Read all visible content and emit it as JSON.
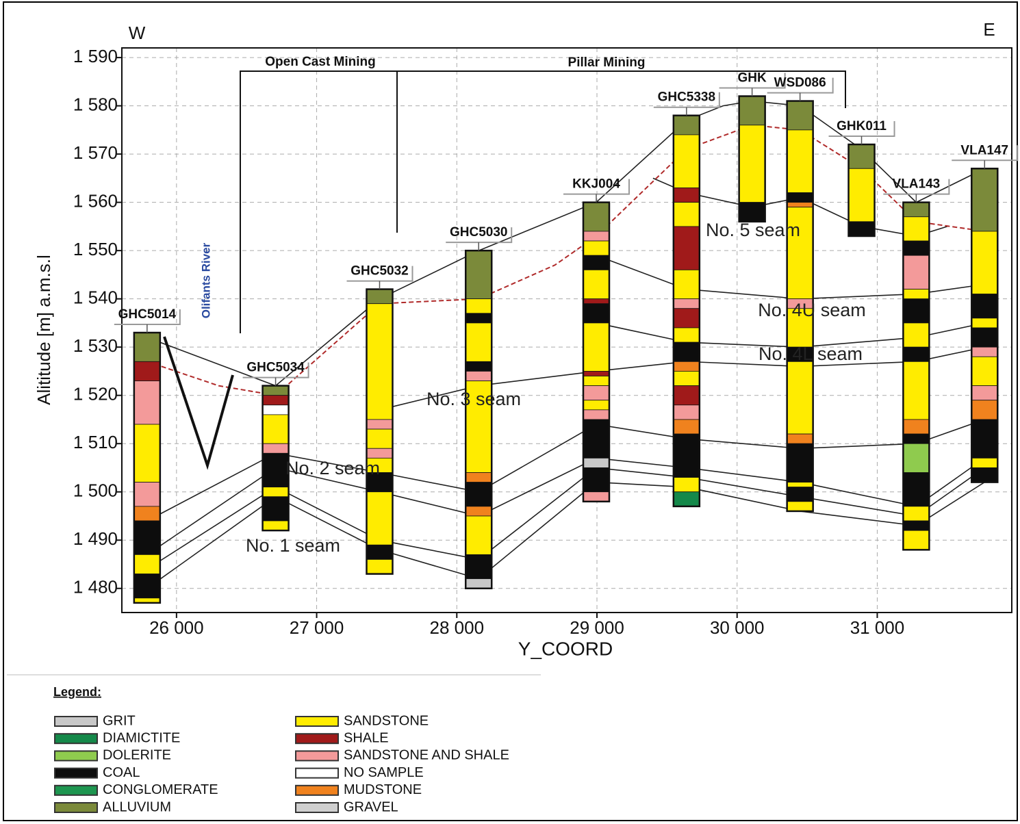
{
  "header": {
    "west": "W",
    "east": "E",
    "open_cast": "Open Cast Mining",
    "pillar": "Pillar Mining",
    "river": "Olifants River"
  },
  "chart_data": {
    "type": "section",
    "xlabel": "Y_COORD",
    "ylabel": "Alititude  [m] a.m.s.l",
    "xlim": [
      25610,
      31960
    ],
    "ylim": [
      1475,
      1592
    ],
    "grid": true,
    "xticks": [
      {
        "value": 26000,
        "label": "26 000"
      },
      {
        "value": 27000,
        "label": "27 000"
      },
      {
        "value": 28000,
        "label": "28 000"
      },
      {
        "value": 29000,
        "label": "29 000"
      },
      {
        "value": 30000,
        "label": "30 000"
      },
      {
        "value": 31000,
        "label": "31 000"
      }
    ],
    "yticks": [
      {
        "value": 1480,
        "label": "1 480"
      },
      {
        "value": 1490,
        "label": "1 490"
      },
      {
        "value": 1500,
        "label": "1 500"
      },
      {
        "value": 1510,
        "label": "1 510"
      },
      {
        "value": 1520,
        "label": "1 520"
      },
      {
        "value": 1530,
        "label": "1 530"
      },
      {
        "value": 1540,
        "label": "1 540"
      },
      {
        "value": 1550,
        "label": "1 550"
      },
      {
        "value": 1560,
        "label": "1 560"
      },
      {
        "value": 1570,
        "label": "1 570"
      },
      {
        "value": 1580,
        "label": "1 580"
      },
      {
        "value": 1590,
        "label": "1 590"
      }
    ],
    "boreholes": [
      {
        "name": "GHC5014",
        "x": 25790,
        "layers": [
          [
            "ALLUVIUM",
            1533,
            1527
          ],
          [
            "SHALE",
            1527,
            1523
          ],
          [
            "SANDSTONE AND SHALE",
            1523,
            1514
          ],
          [
            "SANDSTONE",
            1514,
            1502
          ],
          [
            "SANDSTONE AND SHALE",
            1502,
            1497
          ],
          [
            "MUDSTONE",
            1497,
            1494
          ],
          [
            "COAL",
            1494,
            1487
          ],
          [
            "SANDSTONE",
            1487,
            1483
          ],
          [
            "COAL",
            1483,
            1478
          ],
          [
            "SANDSTONE",
            1478,
            1477
          ]
        ]
      },
      {
        "name": "GHC5034",
        "x": 26707,
        "layers": [
          [
            "ALLUVIUM",
            1522,
            1520
          ],
          [
            "SHALE",
            1520,
            1518
          ],
          [
            "NO SAMPLE",
            1518,
            1516
          ],
          [
            "SANDSTONE",
            1516,
            1510
          ],
          [
            "SANDSTONE AND SHALE",
            1510,
            1508
          ],
          [
            "COAL",
            1508,
            1501
          ],
          [
            "SANDSTONE",
            1501,
            1499
          ],
          [
            "COAL",
            1499,
            1494
          ],
          [
            "SANDSTONE",
            1494,
            1492
          ]
        ]
      },
      {
        "name": "GHC5032",
        "x": 27449,
        "layers": [
          [
            "ALLUVIUM",
            1542,
            1539
          ],
          [
            "SANDSTONE",
            1539,
            1515
          ],
          [
            "SANDSTONE AND SHALE",
            1515,
            1513
          ],
          [
            "SANDSTONE",
            1513,
            1509
          ],
          [
            "SANDSTONE AND SHALE",
            1509,
            1507
          ],
          [
            "SANDSTONE",
            1507,
            1504
          ],
          [
            "COAL",
            1504,
            1500
          ],
          [
            "SANDSTONE",
            1500,
            1489
          ],
          [
            "COAL",
            1489,
            1486
          ],
          [
            "SANDSTONE",
            1486,
            1483
          ]
        ]
      },
      {
        "name": "GHC5030",
        "x": 28156,
        "layers": [
          [
            "ALLUVIUM",
            1550,
            1540
          ],
          [
            "SANDSTONE",
            1540,
            1537
          ],
          [
            "COAL",
            1537,
            1535
          ],
          [
            "SANDSTONE",
            1535,
            1527
          ],
          [
            "COAL",
            1527,
            1525
          ],
          [
            "SANDSTONE AND SHALE",
            1525,
            1523
          ],
          [
            "SANDSTONE",
            1523,
            1504
          ],
          [
            "MUDSTONE",
            1504,
            1502
          ],
          [
            "COAL",
            1502,
            1497
          ],
          [
            "MUDSTONE",
            1497,
            1495
          ],
          [
            "SANDSTONE",
            1495,
            1487
          ],
          [
            "COAL",
            1487,
            1482
          ],
          [
            "GRIT",
            1482,
            1480
          ]
        ]
      },
      {
        "name": "KKJ004",
        "x": 28995,
        "layers": [
          [
            "ALLUVIUM",
            1560,
            1554
          ],
          [
            "SANDSTONE AND SHALE",
            1554,
            1552
          ],
          [
            "SANDSTONE",
            1552,
            1549
          ],
          [
            "COAL",
            1549,
            1546
          ],
          [
            "SANDSTONE",
            1546,
            1540
          ],
          [
            "SHALE",
            1540,
            1539
          ],
          [
            "COAL",
            1539,
            1535
          ],
          [
            "SANDSTONE",
            1535,
            1525
          ],
          [
            "SHALE",
            1525,
            1524
          ],
          [
            "SANDSTONE",
            1524,
            1522
          ],
          [
            "SANDSTONE AND SHALE",
            1522,
            1519
          ],
          [
            "SANDSTONE",
            1519,
            1517
          ],
          [
            "SANDSTONE AND SHALE",
            1517,
            1515
          ],
          [
            "COAL",
            1515,
            1507
          ],
          [
            "GRIT",
            1507,
            1505
          ],
          [
            "COAL",
            1505,
            1500
          ],
          [
            "SANDSTONE AND SHALE",
            1500,
            1498
          ]
        ]
      },
      {
        "name": "GHC5338",
        "x": 29639,
        "layers": [
          [
            "ALLUVIUM",
            1578,
            1574
          ],
          [
            "SANDSTONE",
            1574,
            1563
          ],
          [
            "SHALE",
            1563,
            1560
          ],
          [
            "SANDSTONE",
            1560,
            1555
          ],
          [
            "SHALE",
            1555,
            1546
          ],
          [
            "SANDSTONE",
            1546,
            1540
          ],
          [
            "SANDSTONE AND SHALE",
            1540,
            1538
          ],
          [
            "SHALE",
            1538,
            1534
          ],
          [
            "SANDSTONE",
            1534,
            1531
          ],
          [
            "COAL",
            1531,
            1527
          ],
          [
            "MUDSTONE",
            1527,
            1525
          ],
          [
            "SANDSTONE",
            1525,
            1522
          ],
          [
            "SHALE",
            1522,
            1518
          ],
          [
            "SANDSTONE AND SHALE",
            1518,
            1515
          ],
          [
            "MUDSTONE",
            1515,
            1512
          ],
          [
            "COAL",
            1512,
            1503
          ],
          [
            "SANDSTONE",
            1503,
            1500
          ],
          [
            "DIAMICTITE",
            1500,
            1497
          ]
        ]
      },
      {
        "name": "GHK",
        "x": 30107,
        "layers": [
          [
            "ALLUVIUM",
            1582,
            1576
          ],
          [
            "SANDSTONE",
            1576,
            1560
          ],
          [
            "COAL",
            1560,
            1556
          ]
        ]
      },
      {
        "name": "WSD086",
        "x": 30449,
        "layers": [
          [
            "ALLUVIUM",
            1581,
            1575
          ],
          [
            "SANDSTONE",
            1575,
            1562
          ],
          [
            "COAL",
            1562,
            1560
          ],
          [
            "MUDSTONE",
            1560,
            1559
          ],
          [
            "SANDSTONE",
            1559,
            1540
          ],
          [
            "SANDSTONE AND SHALE",
            1540,
            1538
          ],
          [
            "SANDSTONE",
            1538,
            1530
          ],
          [
            "COAL",
            1530,
            1527
          ],
          [
            "SANDSTONE",
            1527,
            1512
          ],
          [
            "MUDSTONE",
            1512,
            1510
          ],
          [
            "COAL",
            1510,
            1502
          ],
          [
            "SANDSTONE",
            1502,
            1501
          ],
          [
            "COAL",
            1501,
            1498
          ],
          [
            "SANDSTONE",
            1498,
            1496
          ]
        ]
      },
      {
        "name": "GHK011",
        "x": 30888,
        "layers": [
          [
            "ALLUVIUM",
            1572,
            1567
          ],
          [
            "SANDSTONE",
            1567,
            1556
          ],
          [
            "COAL",
            1556,
            1553
          ]
        ]
      },
      {
        "name": "VLA143",
        "x": 31278,
        "layers": [
          [
            "ALLUVIUM",
            1560,
            1557
          ],
          [
            "SANDSTONE",
            1557,
            1552
          ],
          [
            "COAL",
            1552,
            1549
          ],
          [
            "SANDSTONE AND SHALE",
            1549,
            1542
          ],
          [
            "SANDSTONE",
            1542,
            1540
          ],
          [
            "COAL",
            1540,
            1535
          ],
          [
            "SANDSTONE",
            1535,
            1530
          ],
          [
            "COAL",
            1530,
            1527
          ],
          [
            "SANDSTONE",
            1527,
            1515
          ],
          [
            "MUDSTONE",
            1515,
            1512
          ],
          [
            "COAL",
            1512,
            1510
          ],
          [
            "DOLERITE",
            1510,
            1504
          ],
          [
            "COAL",
            1504,
            1497
          ],
          [
            "SANDSTONE",
            1497,
            1494
          ],
          [
            "COAL",
            1494,
            1492
          ],
          [
            "SANDSTONE",
            1492,
            1488
          ]
        ]
      },
      {
        "name": "VLA147",
        "x": 31766,
        "layers": [
          [
            "ALLUVIUM",
            1567,
            1554
          ],
          [
            "SANDSTONE",
            1554,
            1541
          ],
          [
            "COAL",
            1541,
            1536
          ],
          [
            "SANDSTONE",
            1536,
            1534
          ],
          [
            "COAL",
            1534,
            1530
          ],
          [
            "SANDSTONE AND SHALE",
            1530,
            1528
          ],
          [
            "SANDSTONE",
            1528,
            1522
          ],
          [
            "SANDSTONE AND SHALE",
            1522,
            1519
          ],
          [
            "MUDSTONE",
            1519,
            1515
          ],
          [
            "COAL",
            1515,
            1507
          ],
          [
            "SANDSTONE",
            1507,
            1505
          ],
          [
            "COAL",
            1505,
            1502
          ]
        ]
      }
    ],
    "lines": [
      {
        "x": [
          25790,
          26707,
          27449,
          28156,
          28995,
          29639,
          29900,
          30107,
          30449,
          30888,
          31278,
          31766
        ],
        "y": [
          1532,
          1522,
          1540,
          1550,
          1560,
          1577,
          1580,
          1581,
          1580,
          1571,
          1560,
          1567
        ]
      },
      {
        "x": [
          25790,
          26707,
          27449,
          28156,
          28995,
          29639,
          30449,
          31278,
          31766
        ],
        "y": [
          1480,
          1499,
          1488,
          1482,
          1502,
          1501,
          1496,
          1493,
          1502
        ]
      },
      {
        "x": [
          25790,
          26707,
          27449,
          28156,
          28995,
          29639,
          30449,
          31278,
          31766
        ],
        "y": [
          1484,
          1501,
          1490,
          1486,
          1505,
          1503,
          1499,
          1495,
          1505
        ]
      },
      {
        "x": [
          25790,
          26707,
          27449,
          28156,
          28995,
          29639,
          30449,
          31278,
          31766
        ],
        "y": [
          1487,
          1505,
          1500,
          1495,
          1507,
          1505,
          1502,
          1497,
          1507
        ]
      },
      {
        "x": [
          25790,
          26707,
          27449,
          28156,
          28995,
          29639,
          30449,
          31278,
          31766
        ],
        "y": [
          1494,
          1508,
          1504,
          1500,
          1514,
          1511,
          1509,
          1510,
          1515
        ]
      },
      {
        "x": [
          27449,
          28156,
          28995,
          29639,
          30449,
          31278,
          31766
        ],
        "y": [
          1517,
          1522,
          1525,
          1527,
          1526,
          1527,
          1530
        ]
      },
      {
        "x": [
          28995,
          29639,
          30449,
          31278,
          31766
        ],
        "y": [
          1535,
          1531,
          1530,
          1532,
          1535
        ]
      },
      {
        "x": [
          28995,
          29639,
          30449,
          31278,
          31766
        ],
        "y": [
          1549,
          1542,
          1540,
          1541,
          1543
        ]
      },
      {
        "x": [
          29400,
          29639,
          30107,
          30449,
          30888,
          31278,
          31500
        ],
        "y": [
          1565,
          1562,
          1559,
          1561,
          1555,
          1553,
          1555
        ]
      }
    ],
    "water_table": {
      "color": "#b02a2a",
      "x": [
        25790,
        26300,
        26707,
        27449,
        28156,
        28700,
        28995,
        29639,
        30107,
        30449,
        30888,
        31278,
        31766
      ],
      "y": [
        1527,
        1522,
        1520,
        1539,
        1540,
        1547,
        1553,
        1571,
        1576,
        1575,
        1567,
        1556,
        1554
      ]
    },
    "annotations": [
      "No. 5 seam",
      "No. 4U seam",
      "No. 4L seam",
      "No. 3 seam",
      "No. 2 seam",
      "No. 1 seam"
    ]
  },
  "legend": {
    "title": "Legend:",
    "items": [
      {
        "name": "GRIT",
        "color": "#c8c8c8"
      },
      {
        "name": "DIAMICTITE",
        "color": "#15894a"
      },
      {
        "name": "DOLERITE",
        "color": "#8fcb4e"
      },
      {
        "name": "COAL",
        "color": "#0d0d0d"
      },
      {
        "name": "CONGLOMERATE",
        "color": "#1e9650"
      },
      {
        "name": "ALLUVIUM",
        "color": "#7b8a3a"
      },
      {
        "name": "SANDSTONE",
        "color": "#ffec00"
      },
      {
        "name": "SHALE",
        "color": "#a01a1a"
      },
      {
        "name": "SANDSTONE AND SHALE",
        "color": "#f39a9a"
      },
      {
        "name": "NO SAMPLE",
        "color": "#ffffff"
      },
      {
        "name": "MUDSTONE",
        "color": "#f0821e"
      },
      {
        "name": "GRAVEL",
        "color": "#cfcfcf"
      }
    ]
  }
}
